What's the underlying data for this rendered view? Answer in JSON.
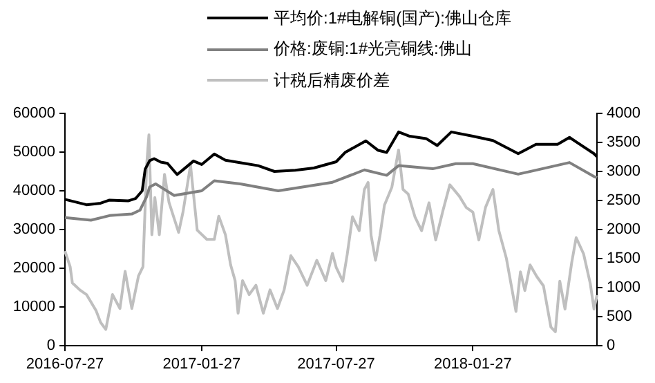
{
  "chart_data": {
    "type": "line",
    "legend": "top",
    "grid": false,
    "marker": "none",
    "line_style": "solid",
    "xlim": [
      "2016-07-27",
      "2018-07-13"
    ],
    "xticks": [
      "2016-07-27",
      "2017-01-27",
      "2017-07-27",
      "2018-01-27"
    ],
    "ylim": [
      0,
      60000
    ],
    "yticks": [
      0,
      10000,
      20000,
      30000,
      40000,
      50000,
      60000
    ],
    "y2lim": [
      0,
      4000
    ],
    "y2ticks": [
      0,
      500,
      1000,
      1500,
      2000,
      2500,
      3000,
      3500,
      4000
    ],
    "series": [
      {
        "name": "平均价:1#电解铜(国产):佛山仓库",
        "color": "#000000",
        "x": [
          "2016-07-27",
          "2016-08-25",
          "2016-09-13",
          "2016-09-25",
          "2016-10-20",
          "2016-10-30",
          "2016-11-08",
          "2016-11-12",
          "2016-11-18",
          "2016-11-24",
          "2016-12-03",
          "2016-12-12",
          "2016-12-25",
          "2017-01-03",
          "2017-01-16",
          "2017-01-27",
          "2017-02-13",
          "2017-02-28",
          "2017-03-25",
          "2017-04-13",
          "2017-05-05",
          "2017-06-02",
          "2017-06-27",
          "2017-07-27",
          "2017-08-08",
          "2017-09-05",
          "2017-09-21",
          "2017-10-03",
          "2017-10-19",
          "2017-11-03",
          "2017-11-25",
          "2017-12-10",
          "2017-12-29",
          "2018-01-27",
          "2018-02-23",
          "2018-03-29",
          "2018-04-22",
          "2018-05-21",
          "2018-06-06",
          "2018-06-17",
          "2018-07-09",
          "2018-07-13"
        ],
        "values": [
          37800,
          36400,
          36800,
          37600,
          37400,
          38000,
          40000,
          45600,
          47800,
          48300,
          47400,
          47100,
          44200,
          45600,
          47700,
          46800,
          49500,
          47900,
          47100,
          46500,
          45000,
          45300,
          45900,
          47500,
          49900,
          52900,
          50500,
          49900,
          55200,
          54100,
          53500,
          51700,
          55200,
          54100,
          53000,
          49600,
          52000,
          52000,
          53800,
          52400,
          49600,
          48800
        ]
      },
      {
        "name": "价格:废铜:1#光亮铜线:佛山",
        "color": "#808080",
        "x": [
          "2016-07-27",
          "2016-08-31",
          "2016-09-25",
          "2016-10-25",
          "2016-11-05",
          "2016-11-14",
          "2016-11-18",
          "2016-11-26",
          "2016-12-21",
          "2017-01-27",
          "2017-02-13",
          "2017-03-20",
          "2017-05-10",
          "2017-07-22",
          "2017-09-03",
          "2017-10-03",
          "2017-10-19",
          "2017-12-04",
          "2018-01-04",
          "2018-01-27",
          "2018-03-29",
          "2018-06-06",
          "2018-07-09",
          "2018-07-13"
        ],
        "values": [
          33100,
          32400,
          33600,
          34000,
          35000,
          38500,
          41000,
          41800,
          38800,
          40000,
          42600,
          41800,
          40000,
          42200,
          45400,
          44000,
          46500,
          45700,
          47000,
          47000,
          44300,
          47300,
          43700,
          43400
        ]
      },
      {
        "name": "计税后精废价差",
        "color": "#bfbfbf",
        "axis": "y2",
        "x": [
          "2016-07-27",
          "2016-08-03",
          "2016-08-06",
          "2016-08-16",
          "2016-08-25",
          "2016-09-07",
          "2016-09-13",
          "2016-09-20",
          "2016-09-29",
          "2016-10-09",
          "2016-10-16",
          "2016-10-25",
          "2016-11-03",
          "2016-11-09",
          "2016-11-14",
          "2016-11-17",
          "2016-11-21",
          "2016-11-25",
          "2016-12-01",
          "2016-12-08",
          "2016-12-14",
          "2016-12-27",
          "2017-01-02",
          "2017-01-12",
          "2017-01-21",
          "2017-02-03",
          "2017-02-13",
          "2017-02-19",
          "2017-02-28",
          "2017-03-07",
          "2017-03-13",
          "2017-03-17",
          "2017-03-23",
          "2017-04-01",
          "2017-04-10",
          "2017-04-20",
          "2017-04-29",
          "2017-05-09",
          "2017-05-18",
          "2017-05-27",
          "2017-06-06",
          "2017-06-18",
          "2017-07-01",
          "2017-07-13",
          "2017-07-22",
          "2017-07-27",
          "2017-08-05",
          "2017-08-11",
          "2017-08-18",
          "2017-08-27",
          "2017-09-03",
          "2017-09-08",
          "2017-09-12",
          "2017-09-18",
          "2017-09-24",
          "2017-09-30",
          "2017-10-10",
          "2017-10-19",
          "2017-10-25",
          "2017-11-01",
          "2017-11-10",
          "2017-11-19",
          "2017-11-29",
          "2017-12-08",
          "2017-12-18",
          "2017-12-27",
          "2018-01-09",
          "2018-01-18",
          "2018-01-27",
          "2018-02-04",
          "2018-02-13",
          "2018-02-23",
          "2018-03-03",
          "2018-03-13",
          "2018-03-26",
          "2018-04-01",
          "2018-04-07",
          "2018-04-14",
          "2018-04-23",
          "2018-05-02",
          "2018-05-12",
          "2018-05-18",
          "2018-05-24",
          "2018-05-31",
          "2018-06-09",
          "2018-06-15",
          "2018-06-25",
          "2018-07-04",
          "2018-07-09",
          "2018-07-13"
        ],
        "values": [
          1630,
          1360,
          1080,
          960,
          880,
          600,
          400,
          280,
          880,
          640,
          1280,
          640,
          1200,
          1360,
          3110,
          3630,
          1910,
          2550,
          1910,
          2950,
          2470,
          1950,
          2310,
          3110,
          1990,
          1830,
          1830,
          2230,
          1910,
          1390,
          1120,
          560,
          1120,
          880,
          1040,
          560,
          960,
          640,
          960,
          1550,
          1360,
          1040,
          1470,
          1120,
          1590,
          1350,
          1110,
          1580,
          2220,
          1980,
          2690,
          2810,
          1900,
          1470,
          1900,
          2420,
          2730,
          3370,
          2690,
          2610,
          2220,
          1980,
          2460,
          1820,
          2340,
          2770,
          2570,
          2380,
          2300,
          1820,
          2380,
          2690,
          1980,
          1510,
          590,
          1270,
          950,
          1390,
          1190,
          1030,
          320,
          240,
          1110,
          630,
          1430,
          1860,
          1580,
          1070,
          630,
          870
        ]
      }
    ]
  }
}
